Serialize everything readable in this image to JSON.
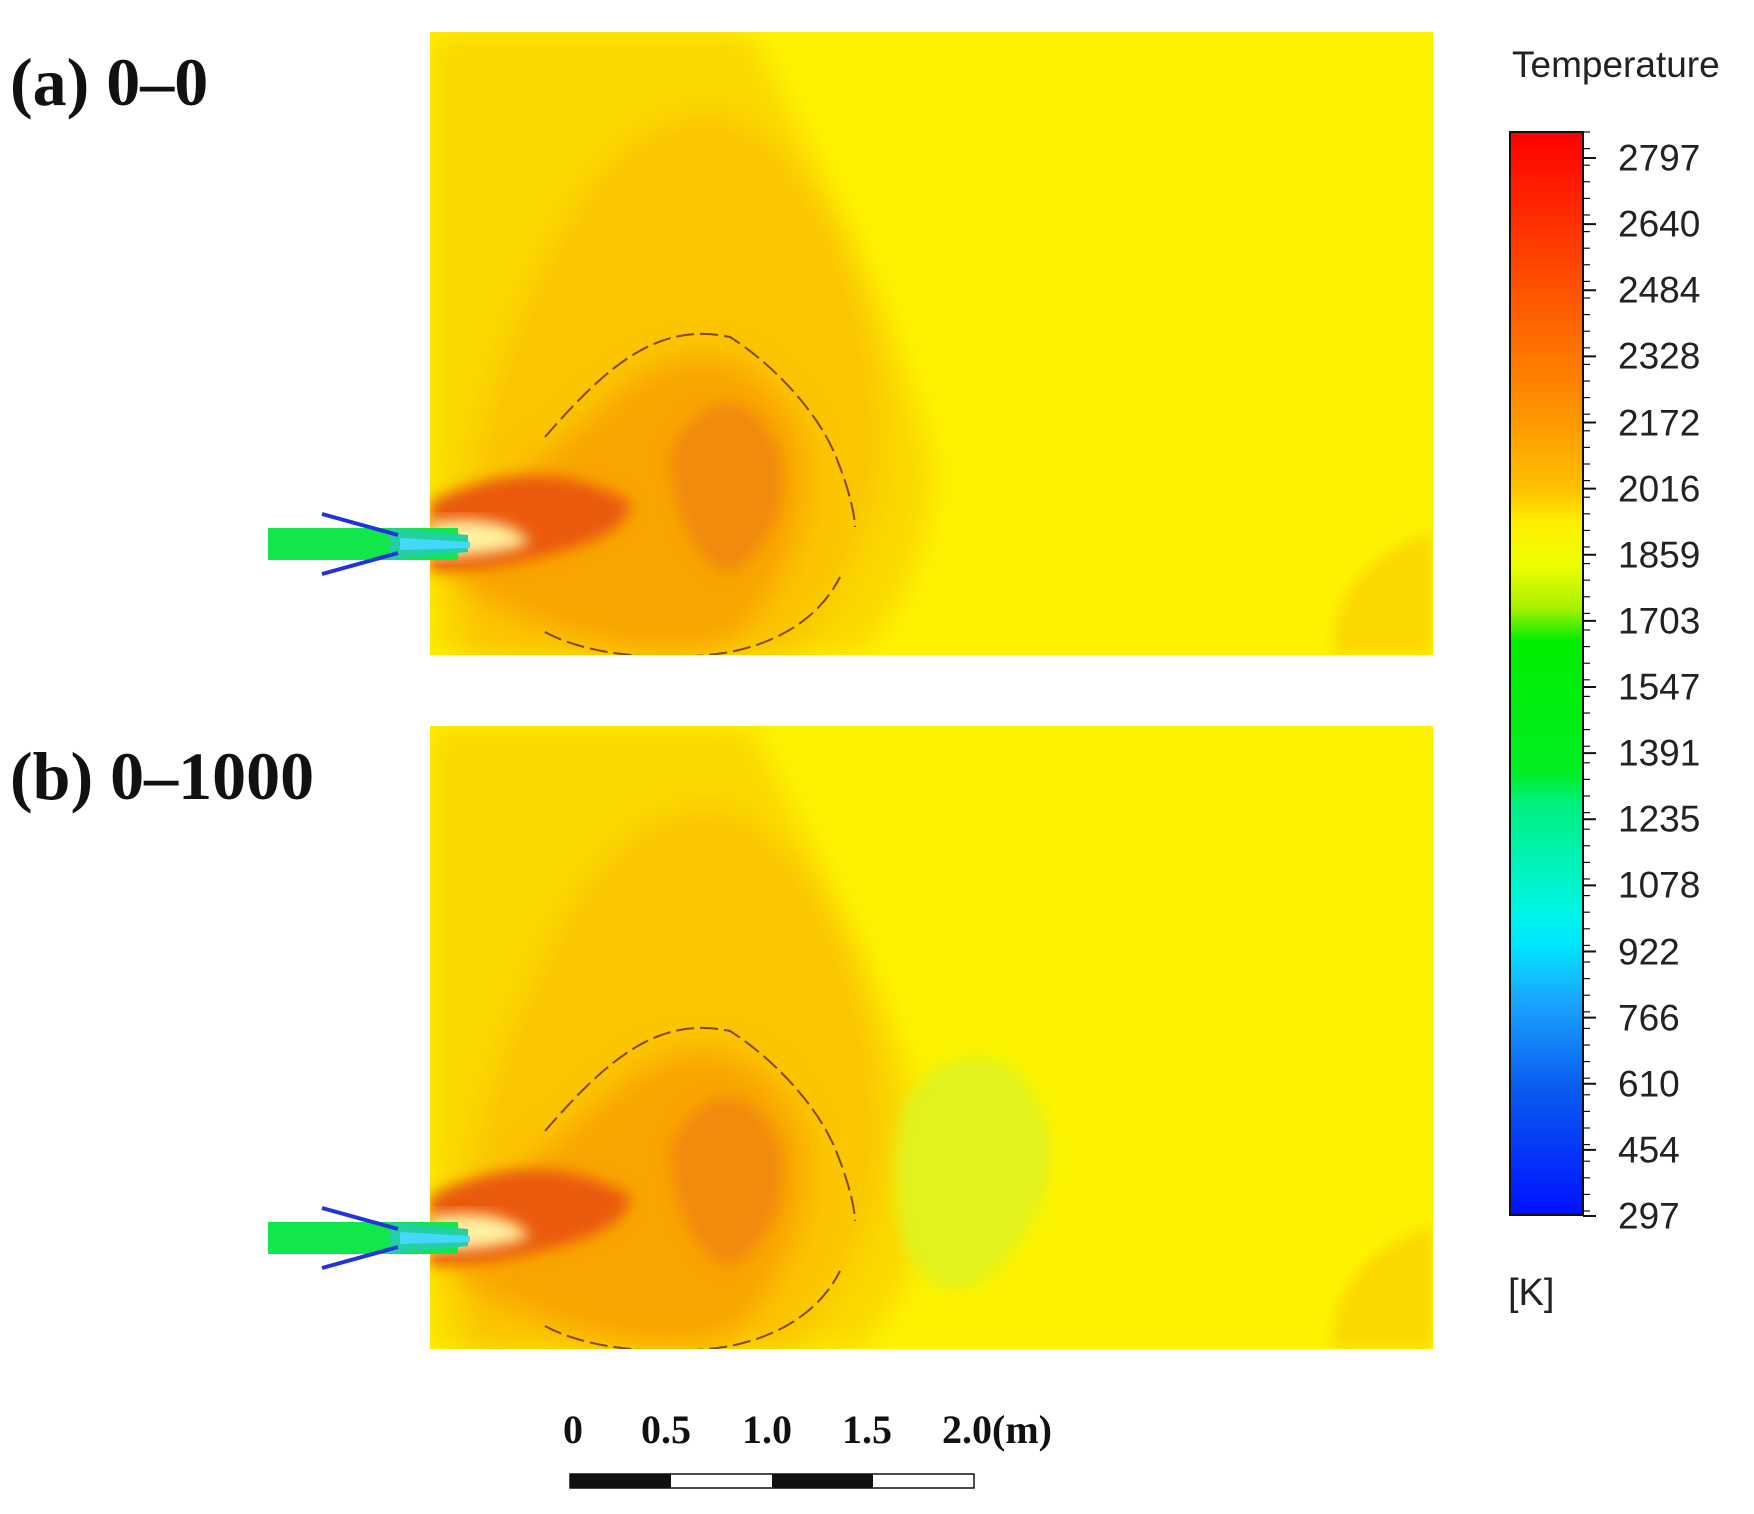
{
  "panels": [
    {
      "label": "(a) 0–0"
    },
    {
      "label": "(b) 0–1000"
    }
  ],
  "legend": {
    "title": "Temperature",
    "unit": "[K]",
    "tick_labels": [
      "2797",
      "2640",
      "2484",
      "2328",
      "2172",
      "2016",
      "1859",
      "1703",
      "1547",
      "1391",
      "1235",
      "1078",
      "922",
      "766",
      "610",
      "454",
      "297"
    ],
    "min": 297,
    "max": 2797
  },
  "scale_bar": {
    "labels": [
      "0",
      "0.5",
      "1.0",
      "1.5",
      "2.0(m)"
    ]
  },
  "colors": {
    "background_field": "#fdf300",
    "warm_zone": "#fbc800",
    "hot_zone": "#f9a200",
    "core": "#f28a0c",
    "flame_red": "#ea5a10",
    "jet_green": "#11e64a",
    "cool_zone_b": "#e1f21c",
    "blue_line": "#2233dd"
  }
}
